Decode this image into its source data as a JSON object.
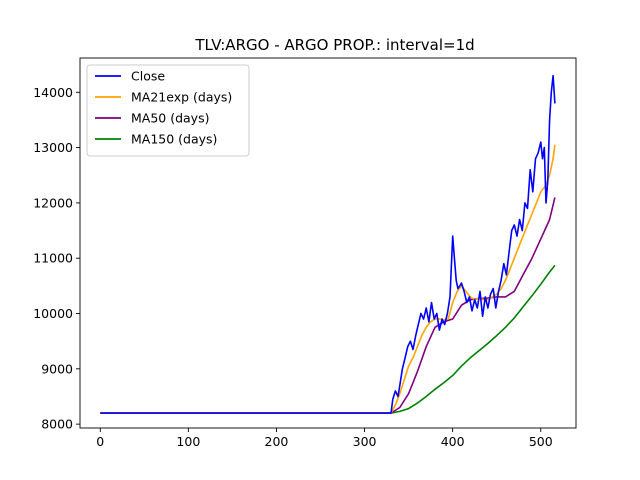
{
  "chart_data": {
    "type": "line",
    "title": "TLV:ARGO - ARGO PROP.: interval=1d",
    "xlabel": "",
    "ylabel": "",
    "xlim": [
      -23,
      540
    ],
    "ylim": [
      7930,
      14620
    ],
    "xticks": [
      0,
      100,
      200,
      300,
      400,
      500
    ],
    "yticks": [
      8000,
      9000,
      10000,
      11000,
      12000,
      13000,
      14000
    ],
    "grid": false,
    "legend": "top-left",
    "series": [
      {
        "name": "Close",
        "color": "#0000ff",
        "x": [
          0,
          100,
          200,
          300,
          330,
          332,
          335,
          338,
          340,
          343,
          346,
          349,
          352,
          355,
          358,
          361,
          364,
          367,
          370,
          373,
          376,
          379,
          382,
          385,
          388,
          391,
          394,
          397,
          400,
          402,
          404,
          406,
          408,
          410,
          413,
          416,
          419,
          422,
          425,
          428,
          431,
          434,
          437,
          440,
          443,
          446,
          449,
          452,
          455,
          458,
          461,
          464,
          467,
          470,
          473,
          476,
          479,
          482,
          485,
          488,
          491,
          494,
          497,
          500,
          502,
          504,
          506,
          508,
          510,
          512,
          514,
          516
        ],
        "values": [
          8200,
          8200,
          8200,
          8200,
          8200,
          8450,
          8600,
          8500,
          8700,
          9000,
          9200,
          9400,
          9500,
          9350,
          9600,
          9800,
          10000,
          9900,
          10100,
          9850,
          10200,
          9900,
          10000,
          9700,
          9900,
          9800,
          10000,
          10300,
          11400,
          11000,
          10600,
          10450,
          10500,
          10550,
          10400,
          10200,
          10300,
          10050,
          10250,
          10100,
          10400,
          9950,
          10300,
          10100,
          10350,
          10450,
          10100,
          10400,
          10600,
          10900,
          10700,
          11100,
          11500,
          11600,
          11400,
          11700,
          11500,
          12000,
          11900,
          12600,
          12200,
          12800,
          12900,
          13100,
          12800,
          13000,
          12000,
          12400,
          13500,
          14000,
          14300,
          13800
        ]
      },
      {
        "name": "MA21exp (days)",
        "color": "#ffa500",
        "x": [
          0,
          100,
          200,
          300,
          330,
          335,
          340,
          345,
          350,
          355,
          360,
          365,
          370,
          375,
          380,
          385,
          390,
          395,
          400,
          405,
          410,
          415,
          420,
          425,
          430,
          435,
          440,
          445,
          450,
          455,
          460,
          465,
          470,
          475,
          480,
          485,
          490,
          495,
          500,
          505,
          510,
          514,
          516
        ],
        "values": [
          8200,
          8200,
          8200,
          8200,
          8200,
          8350,
          8550,
          8800,
          9050,
          9200,
          9400,
          9600,
          9750,
          9850,
          9900,
          9900,
          9880,
          9900,
          10200,
          10400,
          10500,
          10400,
          10300,
          10250,
          10280,
          10250,
          10250,
          10300,
          10350,
          10450,
          10600,
          10800,
          11000,
          11200,
          11400,
          11600,
          11800,
          12000,
          12200,
          12300,
          12500,
          12800,
          13050
        ]
      },
      {
        "name": "MA50 (days)",
        "color": "#800080",
        "x": [
          0,
          100,
          200,
          300,
          330,
          340,
          350,
          360,
          370,
          380,
          390,
          400,
          410,
          420,
          430,
          440,
          450,
          460,
          470,
          480,
          490,
          500,
          510,
          516
        ],
        "values": [
          8200,
          8200,
          8200,
          8200,
          8200,
          8300,
          8550,
          8950,
          9400,
          9750,
          9850,
          9900,
          10150,
          10250,
          10270,
          10280,
          10300,
          10300,
          10400,
          10700,
          11000,
          11350,
          11700,
          12100
        ]
      },
      {
        "name": "MA150 (days)",
        "color": "#008000",
        "x": [
          0,
          100,
          200,
          300,
          330,
          340,
          350,
          360,
          370,
          380,
          390,
          400,
          410,
          420,
          430,
          440,
          450,
          460,
          470,
          480,
          490,
          500,
          510,
          516
        ],
        "values": [
          8200,
          8200,
          8200,
          8200,
          8200,
          8230,
          8280,
          8380,
          8500,
          8630,
          8750,
          8880,
          9050,
          9200,
          9330,
          9460,
          9600,
          9750,
          9920,
          10120,
          10320,
          10530,
          10750,
          10870
        ]
      }
    ]
  }
}
